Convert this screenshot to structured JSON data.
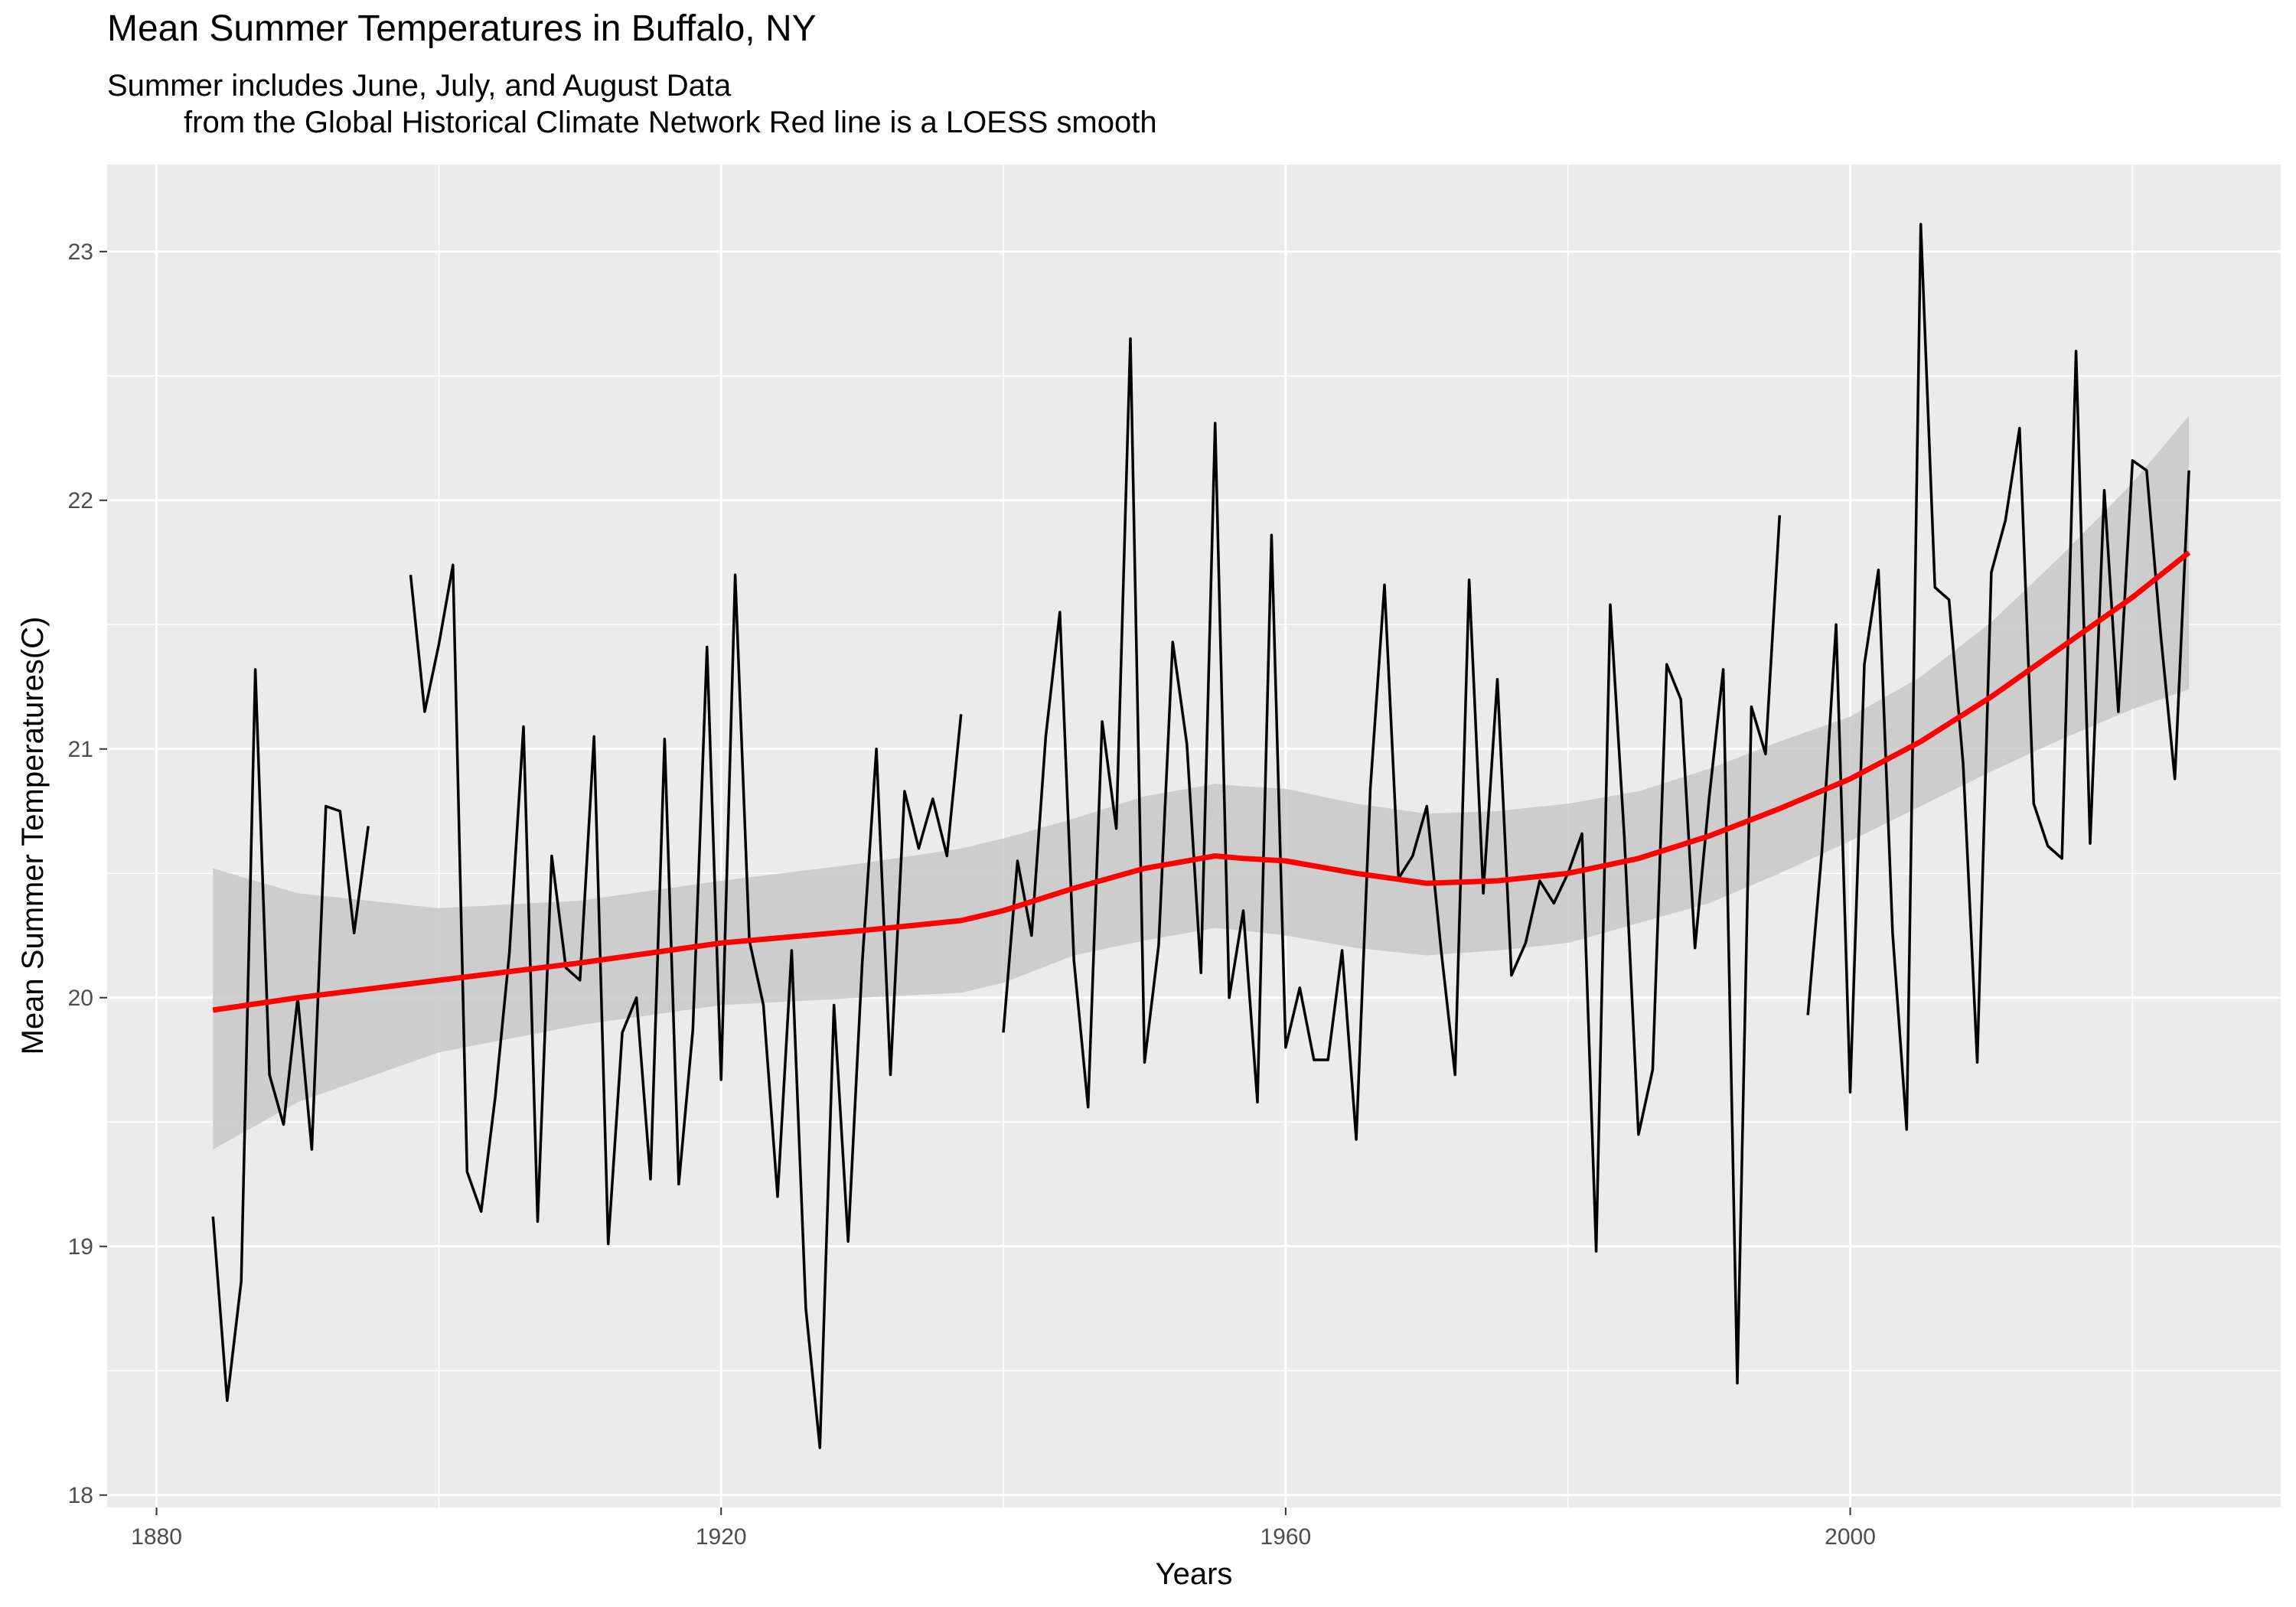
{
  "chart_data": {
    "type": "line",
    "title": "Mean Summer Temperatures in Buffalo, NY",
    "subtitle": "Summer includes June, July, and August Data\n         from the Global Historical Climate Network Red line is a LOESS smooth",
    "xlabel": "Years",
    "ylabel": "Mean Summer Temperatures(C)",
    "xlim": [
      1876.5,
      2030.5
    ],
    "ylim": [
      17.95,
      23.35
    ],
    "x_ticks": [
      1880,
      1920,
      1960,
      2000
    ],
    "y_ticks": [
      18,
      19,
      20,
      21,
      22,
      23
    ],
    "grid": true,
    "colors": {
      "panel": "#ebebeb",
      "grid": "#ffffff",
      "series": "#000000",
      "smooth": "#ff0000",
      "ribbon": "#c8c8c8"
    },
    "series": [
      {
        "values": [
          [
            [
              1884,
              19.12
            ],
            [
              1885,
              18.38
            ],
            [
              1886,
              18.86
            ],
            [
              1887,
              21.32
            ],
            [
              1888,
              19.69
            ],
            [
              1889,
              19.49
            ],
            [
              1890,
              20.0
            ],
            [
              1891,
              19.39
            ],
            [
              1892,
              20.77
            ],
            [
              1893,
              20.75
            ],
            [
              1894,
              20.26
            ],
            [
              1895,
              20.69
            ]
          ],
          [
            [
              1898,
              21.7
            ],
            [
              1899,
              21.15
            ],
            [
              1900,
              21.42
            ],
            [
              1901,
              21.74
            ],
            [
              1902,
              19.3
            ],
            [
              1903,
              19.14
            ],
            [
              1904,
              19.6
            ],
            [
              1905,
              20.18
            ],
            [
              1906,
              21.09
            ],
            [
              1907,
              19.1
            ],
            [
              1908,
              20.57
            ],
            [
              1909,
              20.12
            ],
            [
              1910,
              20.07
            ],
            [
              1911,
              21.05
            ],
            [
              1912,
              19.01
            ],
            [
              1913,
              19.86
            ],
            [
              1914,
              20.0
            ],
            [
              1915,
              19.27
            ],
            [
              1916,
              21.04
            ],
            [
              1917,
              19.25
            ],
            [
              1918,
              19.87
            ],
            [
              1919,
              21.41
            ],
            [
              1920,
              19.67
            ],
            [
              1921,
              21.7
            ],
            [
              1922,
              20.23
            ],
            [
              1923,
              19.97
            ],
            [
              1924,
              19.2
            ],
            [
              1925,
              20.19
            ],
            [
              1926,
              18.75
            ],
            [
              1927,
              18.19
            ],
            [
              1928,
              19.97
            ],
            [
              1929,
              19.02
            ],
            [
              1930,
              20.14
            ],
            [
              1931,
              21.0
            ],
            [
              1932,
              19.69
            ],
            [
              1933,
              20.83
            ],
            [
              1934,
              20.6
            ],
            [
              1935,
              20.8
            ],
            [
              1936,
              20.57
            ],
            [
              1937,
              21.14
            ]
          ],
          [
            [
              1940,
              19.86
            ],
            [
              1941,
              20.55
            ],
            [
              1942,
              20.25
            ],
            [
              1943,
              21.05
            ],
            [
              1944,
              21.55
            ],
            [
              1945,
              20.15
            ],
            [
              1946,
              19.56
            ],
            [
              1947,
              21.11
            ],
            [
              1948,
              20.68
            ],
            [
              1949,
              22.65
            ],
            [
              1950,
              19.74
            ],
            [
              1951,
              20.21
            ],
            [
              1952,
              21.43
            ],
            [
              1953,
              21.02
            ],
            [
              1954,
              20.1
            ],
            [
              1955,
              22.31
            ],
            [
              1956,
              20.0
            ],
            [
              1957,
              20.35
            ],
            [
              1958,
              19.58
            ],
            [
              1959,
              21.86
            ],
            [
              1960,
              19.8
            ],
            [
              1961,
              20.04
            ],
            [
              1962,
              19.75
            ],
            [
              1963,
              19.75
            ],
            [
              1964,
              20.19
            ],
            [
              1965,
              19.43
            ],
            [
              1966,
              20.84
            ],
            [
              1967,
              21.66
            ],
            [
              1968,
              20.48
            ],
            [
              1969,
              20.57
            ],
            [
              1970,
              20.77
            ],
            [
              1971,
              20.2
            ],
            [
              1972,
              19.69
            ],
            [
              1973,
              21.68
            ],
            [
              1974,
              20.42
            ],
            [
              1975,
              21.28
            ],
            [
              1976,
              20.09
            ],
            [
              1977,
              20.22
            ],
            [
              1978,
              20.47
            ],
            [
              1979,
              20.38
            ],
            [
              1980,
              20.5
            ],
            [
              1981,
              20.66
            ],
            [
              1982,
              18.98
            ],
            [
              1983,
              21.58
            ],
            [
              1984,
              20.64
            ],
            [
              1985,
              19.45
            ],
            [
              1986,
              19.71
            ],
            [
              1987,
              21.34
            ],
            [
              1988,
              21.2
            ],
            [
              1989,
              20.2
            ],
            [
              1990,
              20.8
            ],
            [
              1991,
              21.32
            ],
            [
              1992,
              18.45
            ],
            [
              1993,
              21.17
            ],
            [
              1994,
              20.98
            ],
            [
              1995,
              21.94
            ]
          ],
          [
            [
              1997,
              19.93
            ],
            [
              1998,
              20.59
            ],
            [
              1999,
              21.5
            ],
            [
              2000,
              19.62
            ],
            [
              2001,
              21.34
            ],
            [
              2002,
              21.72
            ],
            [
              2003,
              20.26
            ],
            [
              2004,
              19.47
            ],
            [
              2005,
              23.11
            ],
            [
              2006,
              21.65
            ],
            [
              2007,
              21.6
            ],
            [
              2008,
              20.94
            ],
            [
              2009,
              19.74
            ],
            [
              2010,
              21.71
            ],
            [
              2011,
              21.92
            ],
            [
              2012,
              22.29
            ],
            [
              2013,
              20.78
            ],
            [
              2014,
              20.61
            ],
            [
              2015,
              20.56
            ],
            [
              2016,
              22.6
            ],
            [
              2017,
              20.62
            ],
            [
              2018,
              22.04
            ],
            [
              2019,
              21.15
            ],
            [
              2020,
              22.16
            ],
            [
              2021,
              22.12
            ],
            [
              2022,
              21.46
            ],
            [
              2023,
              20.88
            ],
            [
              2024,
              22.12
            ]
          ]
        ]
      }
    ],
    "smooth": {
      "x": [
        1884,
        1890,
        1900,
        1910,
        1920,
        1930,
        1937,
        1940,
        1945,
        1950,
        1955,
        1957,
        1960,
        1965,
        1970,
        1975,
        1980,
        1985,
        1990,
        1995,
        2000,
        2005,
        2010,
        2015,
        2020,
        2024
      ],
      "y": [
        19.95,
        20.0,
        20.07,
        20.14,
        20.22,
        20.27,
        20.31,
        20.35,
        20.44,
        20.52,
        20.57,
        20.56,
        20.55,
        20.5,
        20.46,
        20.47,
        20.5,
        20.56,
        20.65,
        20.76,
        20.88,
        21.03,
        21.21,
        21.41,
        21.61,
        21.79
      ],
      "lower": [
        19.39,
        19.58,
        19.78,
        19.89,
        19.97,
        20.0,
        20.02,
        20.06,
        20.17,
        20.23,
        20.28,
        20.27,
        20.25,
        20.2,
        20.17,
        20.19,
        20.22,
        20.3,
        20.38,
        20.5,
        20.63,
        20.77,
        20.91,
        21.04,
        21.16,
        21.24
      ],
      "upper": [
        20.52,
        20.42,
        20.36,
        20.39,
        20.47,
        20.54,
        20.6,
        20.64,
        20.72,
        20.81,
        20.86,
        20.85,
        20.84,
        20.78,
        20.74,
        20.75,
        20.78,
        20.83,
        20.92,
        21.03,
        21.13,
        21.29,
        21.51,
        21.78,
        22.07,
        22.34
      ]
    }
  }
}
